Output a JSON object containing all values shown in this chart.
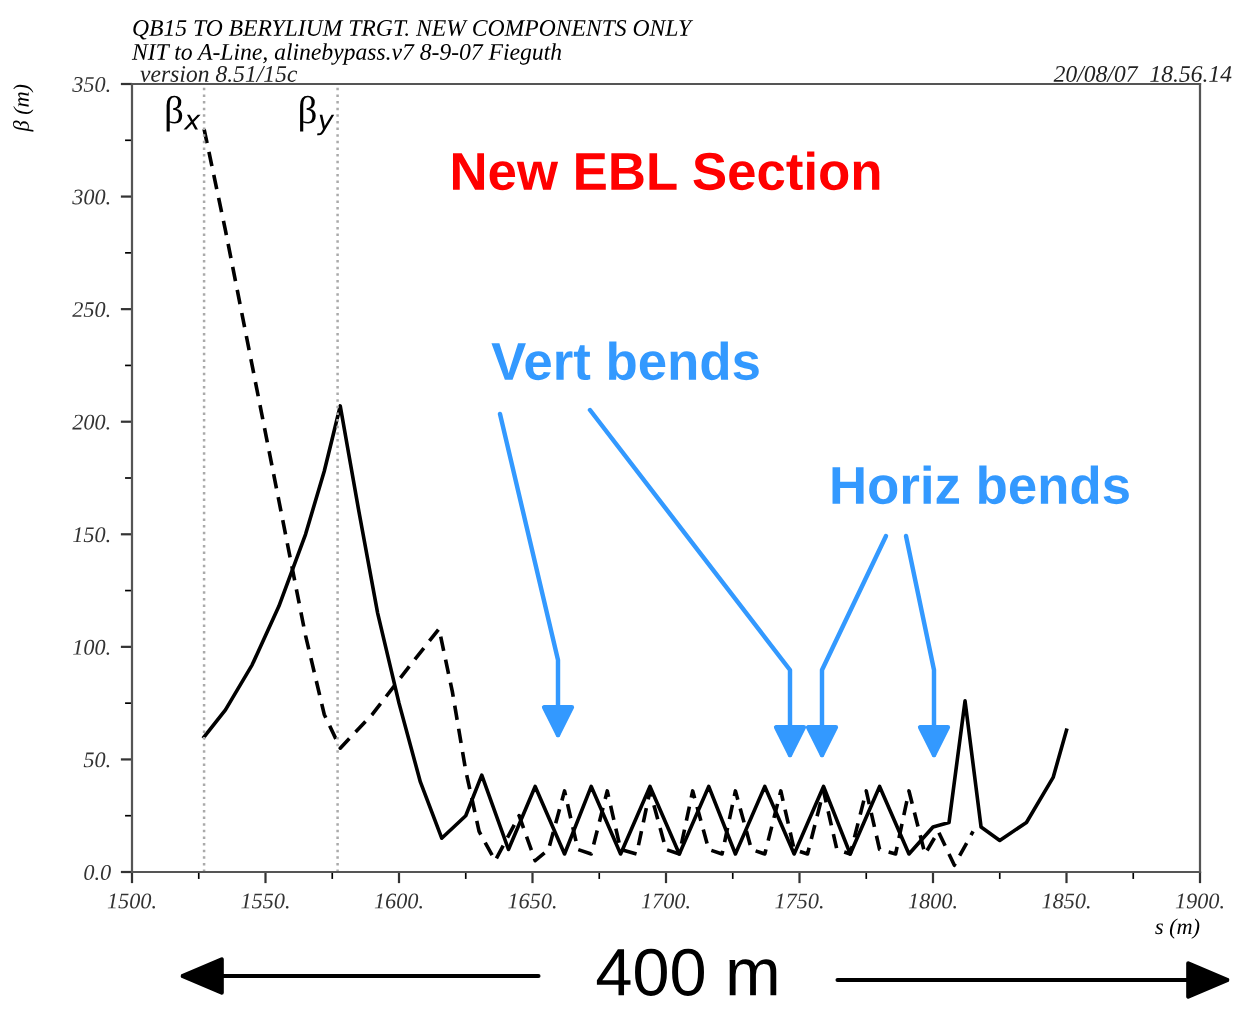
{
  "chart_data": {
    "type": "line",
    "title": "QB15 TO BERYLIUM TRGT. NEW COMPONENTS ONLY",
    "subtitle": "NIT to A-Line, alinebypass.v7 8-9-07 Fieguth",
    "xlabel": "s (m)",
    "ylabel": "β (m)",
    "xlim": [
      1500,
      1900
    ],
    "ylim": [
      0,
      350
    ],
    "xticks": [
      {
        "value": 1500,
        "label": "1500."
      },
      {
        "value": 1550,
        "label": "1550."
      },
      {
        "value": 1600,
        "label": "1600."
      },
      {
        "value": 1650,
        "label": "1650."
      },
      {
        "value": 1700,
        "label": "1700."
      },
      {
        "value": 1750,
        "label": "1750."
      },
      {
        "value": 1800,
        "label": "1800."
      },
      {
        "value": 1850,
        "label": "1850."
      },
      {
        "value": 1900,
        "label": "1900."
      }
    ],
    "yticks": [
      {
        "value": 0,
        "label": "0.0"
      },
      {
        "value": 50,
        "label": "50."
      },
      {
        "value": 100,
        "label": "100."
      },
      {
        "value": 150,
        "label": "150."
      },
      {
        "value": 200,
        "label": "200."
      },
      {
        "value": 250,
        "label": "250."
      },
      {
        "value": 300,
        "label": "300."
      },
      {
        "value": 350,
        "label": "350."
      }
    ],
    "grid": false,
    "legend": false,
    "series": [
      {
        "color": "#000000",
        "line_style": "solid",
        "x": [
          1527,
          1535,
          1545,
          1555,
          1565,
          1572,
          1578,
          1585,
          1592,
          1600,
          1608,
          1616,
          1625,
          1631,
          1641,
          1651,
          1662,
          1672,
          1683,
          1694,
          1705,
          1716,
          1726,
          1737,
          1748,
          1759,
          1769,
          1780,
          1791,
          1800,
          1806,
          1812,
          1818,
          1825,
          1835,
          1845,
          1850
        ],
        "values": [
          60,
          72,
          92,
          118,
          150,
          178,
          207,
          160,
          115,
          75,
          40,
          15,
          25,
          43,
          10,
          38,
          8,
          38,
          8,
          38,
          8,
          38,
          8,
          38,
          8,
          38,
          8,
          38,
          8,
          20,
          22,
          76,
          20,
          14,
          22,
          42,
          63
        ]
      },
      {
        "color": "#000000",
        "line_style": "dashed",
        "x": [
          1527,
          1535,
          1545,
          1555,
          1565,
          1572,
          1578,
          1590,
          1603,
          1615,
          1620,
          1625,
          1630,
          1636,
          1645,
          1651,
          1656,
          1662,
          1667,
          1672,
          1678,
          1683,
          1689,
          1694,
          1700,
          1705,
          1710,
          1716,
          1721,
          1726,
          1732,
          1737,
          1743,
          1748,
          1753,
          1759,
          1764,
          1769,
          1775,
          1780,
          1786,
          1791,
          1797,
          1802,
          1808,
          1815
        ],
        "values": [
          330,
          285,
          225,
          165,
          105,
          70,
          55,
          70,
          90,
          108,
          80,
          45,
          18,
          5,
          25,
          5,
          10,
          36,
          10,
          8,
          36,
          10,
          8,
          36,
          10,
          8,
          36,
          10,
          8,
          36,
          10,
          8,
          36,
          10,
          8,
          36,
          10,
          8,
          36,
          10,
          8,
          36,
          8,
          18,
          3,
          18
        ]
      }
    ],
    "ref_lines": [
      {
        "axis": "x",
        "value": 1527,
        "label": "β$_{x}$",
        "color": "#aaaaaa",
        "line_style": "dotted"
      },
      {
        "axis": "x",
        "value": 1577,
        "label": "β$_{y}$",
        "color": "#aaaaaa",
        "line_style": "dotted"
      }
    ],
    "annotations": [
      "version 8.51/15c",
      "20/08/07  18.56.14",
      "New EBL Section",
      "Vert bends",
      "Horiz bends",
      "400 m"
    ]
  }
}
